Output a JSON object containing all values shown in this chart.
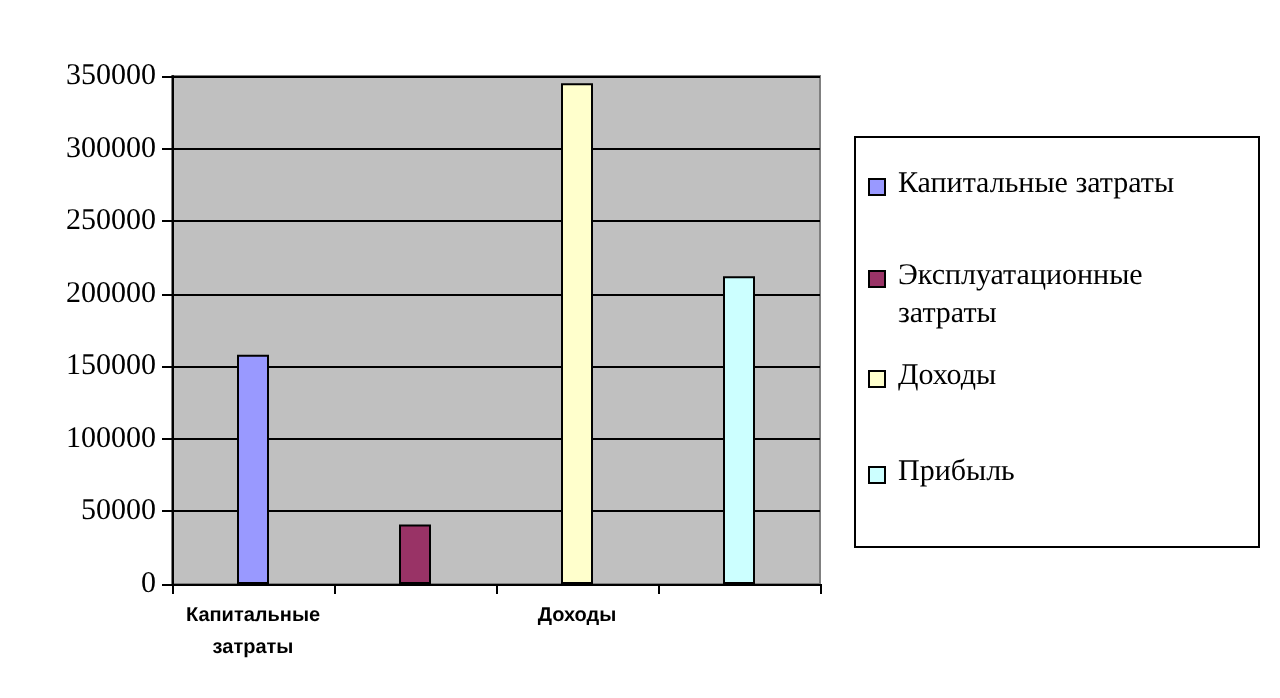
{
  "chart_data": {
    "type": "bar",
    "categories": [
      "Капитальные затраты",
      null,
      "Доходы",
      null
    ],
    "series": [
      {
        "name": "Капитальные затраты",
        "color": "#9999ff",
        "values": [
          158000,
          null,
          null,
          null
        ]
      },
      {
        "name": "Эксплуатационные затраты",
        "color": "#993366",
        "values": [
          null,
          41000,
          null,
          null
        ]
      },
      {
        "name": "Доходы",
        "color": "#ffffcc",
        "values": [
          null,
          null,
          345000,
          null
        ]
      },
      {
        "name": "Прибыль",
        "color": "#ccffff",
        "values": [
          null,
          null,
          null,
          212000
        ]
      }
    ],
    "ylim": [
      0,
      350000
    ],
    "yticks": [
      0,
      50000,
      100000,
      150000,
      200000,
      250000,
      300000,
      350000
    ],
    "grid": "y",
    "legend": "right"
  }
}
